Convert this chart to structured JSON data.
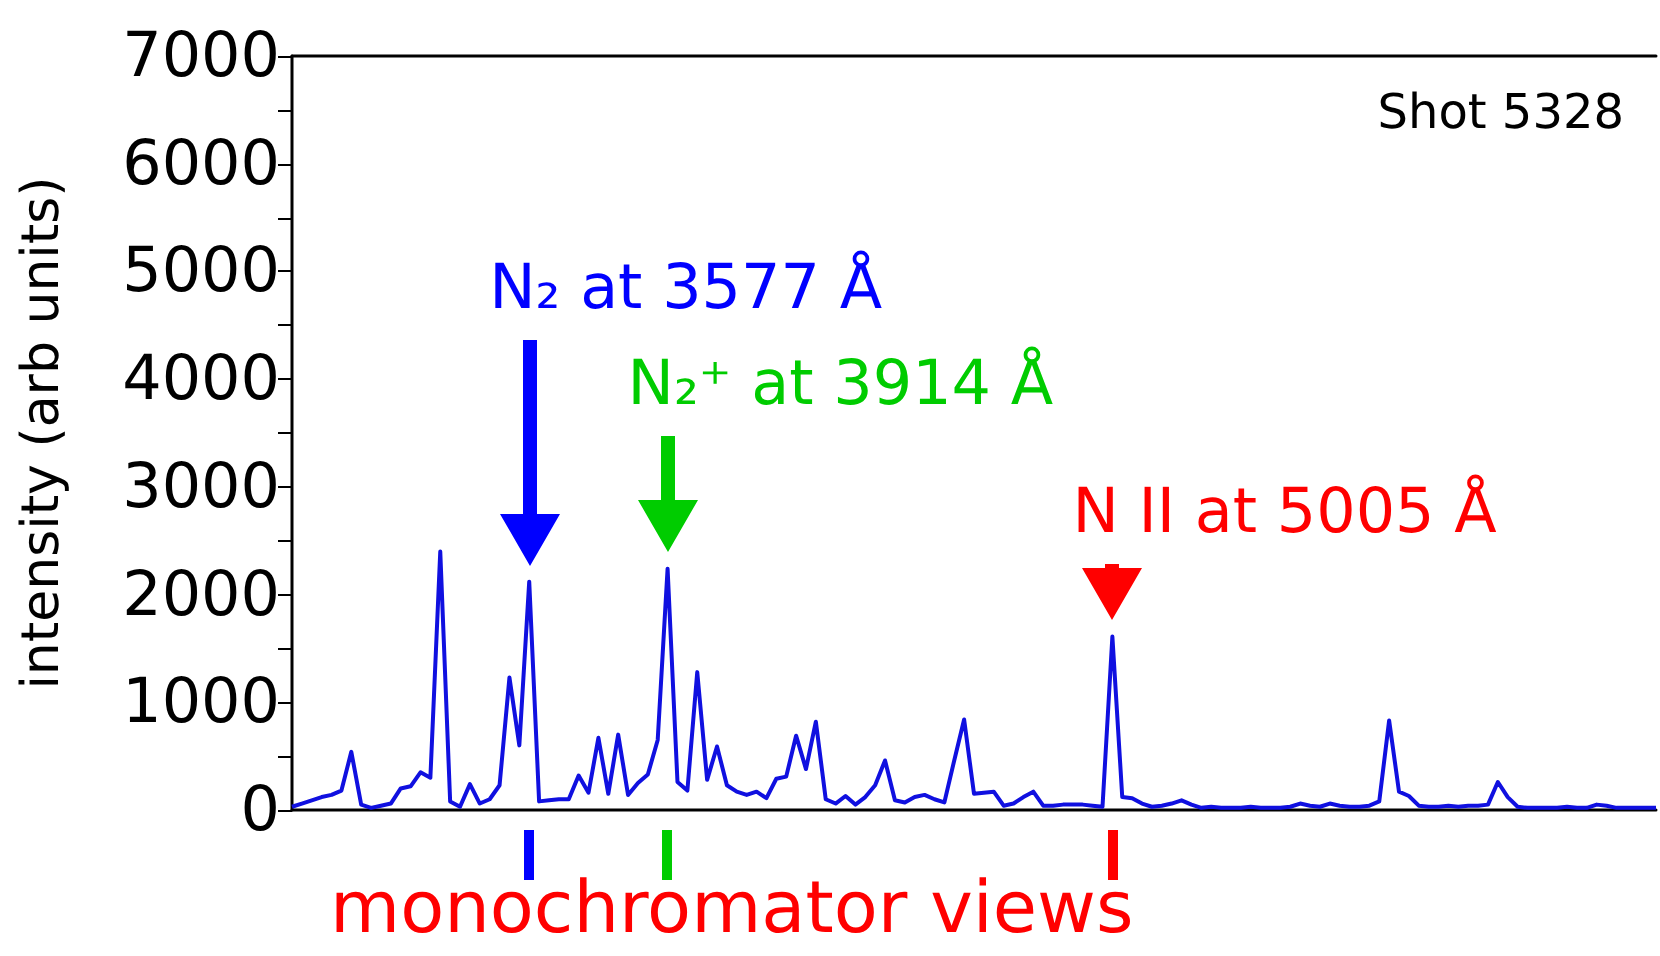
{
  "chart_data": {
    "type": "line",
    "ylabel": "intensity (arb units)",
    "categories": [
      null,
      null,
      null,
      null,
      null,
      null,
      null,
      null,
      null,
      null,
      null,
      null,
      null,
      null,
      null,
      null,
      null,
      null,
      null,
      null,
      null,
      null,
      null,
      null,
      null,
      null,
      null,
      null,
      null,
      null,
      null,
      null,
      null,
      null,
      null,
      null,
      null,
      null,
      null,
      null,
      null,
      null,
      null,
      null,
      null,
      null,
      null,
      null,
      null,
      null,
      null,
      null,
      null,
      null,
      null,
      null,
      null,
      null,
      null,
      null,
      null,
      null,
      null,
      null,
      null,
      null,
      null,
      null,
      null,
      null,
      null,
      null,
      null,
      null,
      null,
      null,
      null,
      null,
      null,
      null,
      null,
      null,
      null,
      null,
      null,
      null,
      null,
      null,
      null,
      null,
      null,
      null,
      null,
      null,
      null,
      null,
      null,
      null,
      null,
      null,
      null,
      null,
      null,
      null,
      null,
      null,
      null,
      null,
      null,
      null,
      null,
      null,
      null,
      null,
      null,
      null,
      null,
      null,
      null,
      null,
      null,
      null,
      null,
      null,
      null,
      null,
      null,
      null,
      null,
      null,
      null,
      null,
      null,
      null,
      null,
      null,
      null,
      null,
      null
    ],
    "series": [
      {
        "color": "#1010e0",
        "values": [
          30,
          60,
          90,
          120,
          140,
          180,
          540,
          50,
          20,
          40,
          60,
          200,
          220,
          350,
          300,
          2400,
          80,
          30,
          240,
          60,
          100,
          230,
          1230,
          600,
          2120,
          80,
          90,
          100,
          100,
          320,
          160,
          670,
          150,
          700,
          140,
          250,
          330,
          650,
          2240,
          260,
          180,
          1280,
          280,
          590,
          230,
          170,
          140,
          170,
          110,
          290,
          310,
          690,
          380,
          820,
          100,
          60,
          130,
          50,
          120,
          230,
          460,
          90,
          70,
          120,
          140,
          100,
          70,
          460,
          840,
          150,
          160,
          170,
          40,
          60,
          120,
          170,
          40,
          40,
          50,
          50,
          50,
          40,
          30,
          1610,
          120,
          110,
          60,
          30,
          40,
          60,
          90,
          50,
          20,
          30,
          20,
          20,
          20,
          30,
          20,
          20,
          20,
          30,
          60,
          40,
          30,
          60,
          40,
          30,
          30,
          40,
          80,
          830,
          170,
          130,
          40,
          30,
          30,
          40,
          30,
          40,
          40,
          50,
          260,
          120,
          30,
          20,
          20,
          20,
          20,
          30,
          20,
          20,
          50,
          40,
          20,
          20,
          20,
          20,
          20
        ]
      }
    ],
    "ylim": [
      0,
      7000
    ],
    "yticks": [
      0,
      {
        "value": 500,
        "label": null
      },
      1000,
      {
        "value": 1500,
        "label": null
      },
      2000,
      {
        "value": 2500,
        "label": null
      },
      3000,
      {
        "value": 3500,
        "label": null
      },
      4000,
      {
        "value": 4500,
        "label": null
      },
      5000,
      {
        "value": 5500,
        "label": null
      },
      6000,
      {
        "value": 6500,
        "label": null
      },
      7000
    ],
    "tick_labels": "y",
    "grid": false,
    "line_style": "solid",
    "annotations": [
      "N₂ at 3577 Å",
      "N₂⁺ at 3914 Å",
      "N II at 5005 Å",
      "Shot 5328",
      "monochromator views"
    ]
  }
}
